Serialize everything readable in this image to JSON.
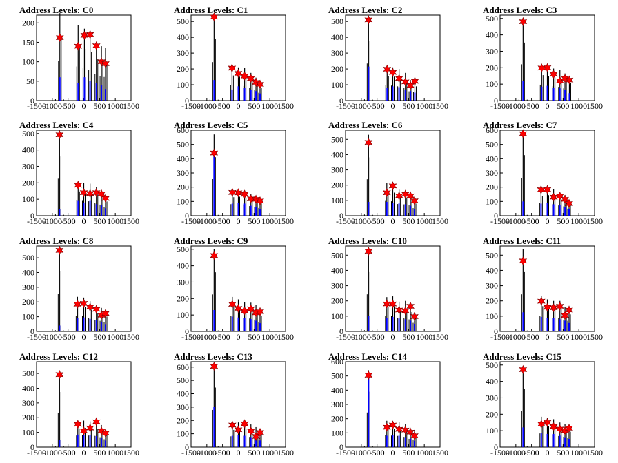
{
  "chart_data": [
    {
      "type": "bar",
      "title": "Address Levels: C0",
      "ylim": [
        0,
        220
      ],
      "yticks": [
        0,
        50,
        100,
        150,
        200
      ],
      "xlim": [
        -1500,
        1500
      ],
      "xticks": [
        -1500,
        -1000,
        -500,
        0,
        500,
        1000,
        1500
      ],
      "x": [
        -760,
        -180,
        20,
        200,
        400,
        560,
        690
      ],
      "peaks": [
        225,
        195,
        185,
        175,
        150,
        140,
        135
      ],
      "blue": [
        60,
        45,
        60,
        50,
        45,
        40,
        30
      ],
      "markers": [
        162,
        140,
        168,
        170,
        141,
        100,
        95
      ],
      "pre": [
        [
          -900,
          5
        ],
        [
          -640,
          3
        ]
      ]
    },
    {
      "type": "bar",
      "title": "Address Levels: C1",
      "ylim": [
        0,
        540
      ],
      "yticks": [
        0,
        100,
        200,
        300,
        400,
        500
      ],
      "xlim": [
        -1500,
        1500
      ],
      "xticks": [
        -1500,
        -1000,
        -500,
        0,
        500,
        1000,
        1500
      ],
      "x": [
        -770,
        -200,
        0,
        200,
        400,
        560,
        690
      ],
      "peaks": [
        540,
        220,
        210,
        205,
        175,
        145,
        110
      ],
      "blue": [
        130,
        70,
        90,
        80,
        70,
        60,
        45
      ],
      "markers": [
        528,
        205,
        172,
        155,
        140,
        115,
        103
      ],
      "pre": [
        [
          -900,
          8
        ],
        [
          -640,
          6
        ]
      ]
    },
    {
      "type": "bar",
      "title": "Address Levels: C2",
      "ylim": [
        0,
        540
      ],
      "yticks": [
        0,
        100,
        200,
        300,
        400,
        500
      ],
      "xlim": [
        -1500,
        1500
      ],
      "xticks": [
        -1500,
        -1000,
        -500,
        0,
        500,
        1000,
        1500
      ],
      "x": [
        -770,
        -180,
        0,
        200,
        400,
        560,
        700
      ],
      "peaks": [
        520,
        215,
        210,
        200,
        175,
        130,
        125
      ],
      "blue": [
        215,
        80,
        90,
        85,
        65,
        60,
        50
      ],
      "markers": [
        510,
        198,
        178,
        140,
        118,
        95,
        122
      ],
      "pre": [
        [
          -900,
          8
        ],
        [
          -640,
          6
        ]
      ]
    },
    {
      "type": "bar",
      "title": "Address Levels: C3",
      "ylim": [
        0,
        520
      ],
      "yticks": [
        0,
        100,
        200,
        300,
        400,
        500
      ],
      "xlim": [
        -1500,
        1500
      ],
      "xticks": [
        -1500,
        -1000,
        -500,
        0,
        500,
        1000,
        1500
      ],
      "x": [
        -770,
        -180,
        0,
        200,
        400,
        560,
        700
      ],
      "peaks": [
        490,
        215,
        205,
        195,
        185,
        165,
        150
      ],
      "blue": [
        120,
        85,
        90,
        80,
        75,
        65,
        45
      ],
      "markers": [
        480,
        198,
        200,
        160,
        120,
        135,
        125
      ],
      "pre": [
        [
          -900,
          8
        ],
        [
          -640,
          6
        ]
      ]
    },
    {
      "type": "bar",
      "title": "Address Levels: C4",
      "ylim": [
        0,
        520
      ],
      "yticks": [
        0,
        100,
        200,
        300,
        400,
        500
      ],
      "xlim": [
        -1500,
        1500
      ],
      "xticks": [
        -1500,
        -1000,
        -500,
        0,
        500,
        1000,
        1500
      ],
      "x": [
        -770,
        -180,
        0,
        200,
        400,
        560,
        690
      ],
      "peaks": [
        500,
        205,
        200,
        195,
        175,
        150,
        120
      ],
      "blue": [
        40,
        90,
        80,
        90,
        70,
        65,
        45
      ],
      "markers": [
        492,
        185,
        140,
        135,
        140,
        132,
        105
      ],
      "pre": [
        [
          -900,
          8
        ],
        [
          -640,
          6
        ]
      ]
    },
    {
      "type": "bar",
      "title": "Address Levels: C5",
      "ylim": [
        0,
        600
      ],
      "yticks": [
        0,
        100,
        200,
        300,
        400,
        500,
        600
      ],
      "xlim": [
        -1500,
        1500
      ],
      "xticks": [
        -1500,
        -1000,
        -500,
        0,
        500,
        1000,
        1500
      ],
      "x": [
        -770,
        -190,
        0,
        200,
        400,
        560,
        690
      ],
      "peaks": [
        570,
        180,
        185,
        170,
        150,
        140,
        120
      ],
      "blue": [
        440,
        85,
        90,
        85,
        70,
        60,
        45
      ],
      "markers": [
        440,
        163,
        160,
        150,
        118,
        115,
        103
      ],
      "pre": [
        [
          -900,
          8
        ],
        [
          -640,
          6
        ]
      ]
    },
    {
      "type": "bar",
      "title": "Address Levels: C6",
      "ylim": [
        0,
        560
      ],
      "yticks": [
        0,
        100,
        200,
        300,
        400,
        500
      ],
      "xlim": [
        -1500,
        1500
      ],
      "xticks": [
        -1500,
        -1000,
        -500,
        0,
        500,
        1000,
        1500
      ],
      "x": [
        -770,
        -190,
        0,
        200,
        400,
        560,
        690
      ],
      "peaks": [
        530,
        215,
        210,
        170,
        165,
        150,
        110
      ],
      "blue": [
        90,
        90,
        85,
        80,
        75,
        65,
        45
      ],
      "markers": [
        480,
        150,
        195,
        130,
        140,
        130,
        97
      ],
      "pre": [
        [
          -900,
          8
        ],
        [
          -640,
          6
        ]
      ]
    },
    {
      "type": "bar",
      "title": "Address Levels: C7",
      "ylim": [
        0,
        600
      ],
      "yticks": [
        0,
        100,
        200,
        300,
        400,
        500,
        600
      ],
      "xlim": [
        -1500,
        1500
      ],
      "xticks": [
        -1500,
        -1000,
        -500,
        0,
        500,
        1000,
        1500
      ],
      "x": [
        -770,
        -200,
        0,
        200,
        400,
        560,
        690
      ],
      "peaks": [
        590,
        195,
        200,
        185,
        160,
        145,
        110
      ],
      "blue": [
        100,
        85,
        90,
        80,
        75,
        60,
        45
      ],
      "markers": [
        575,
        182,
        183,
        130,
        137,
        115,
        85
      ],
      "pre": [
        [
          -900,
          8
        ],
        [
          -640,
          6
        ]
      ]
    },
    {
      "type": "bar",
      "title": "Address Levels: C8",
      "ylim": [
        0,
        580
      ],
      "yticks": [
        0,
        100,
        200,
        300,
        400,
        500
      ],
      "xlim": [
        -1500,
        1500
      ],
      "xticks": [
        -1500,
        -1000,
        -500,
        0,
        500,
        1000,
        1500
      ],
      "x": [
        -770,
        -200,
        0,
        200,
        400,
        560,
        690
      ],
      "peaks": [
        570,
        235,
        230,
        205,
        175,
        160,
        140
      ],
      "blue": [
        40,
        90,
        95,
        85,
        75,
        65,
        50
      ],
      "markers": [
        550,
        185,
        190,
        165,
        150,
        110,
        122
      ],
      "pre": [
        [
          -900,
          8
        ],
        [
          -640,
          6
        ]
      ]
    },
    {
      "type": "bar",
      "title": "Address Levels: C9",
      "ylim": [
        0,
        520
      ],
      "yticks": [
        0,
        100,
        200,
        300,
        400,
        500
      ],
      "xlim": [
        -1500,
        1500
      ],
      "xticks": [
        -1500,
        -1000,
        -500,
        0,
        500,
        1000,
        1500
      ],
      "x": [
        -770,
        -190,
        0,
        200,
        400,
        560,
        690
      ],
      "peaks": [
        500,
        210,
        195,
        180,
        175,
        160,
        130
      ],
      "blue": [
        130,
        90,
        85,
        80,
        75,
        65,
        50
      ],
      "markers": [
        462,
        165,
        140,
        125,
        138,
        113,
        120
      ],
      "pre": [
        [
          -900,
          8
        ],
        [
          -640,
          6
        ]
      ]
    },
    {
      "type": "bar",
      "title": "Address Levels: C10",
      "ylim": [
        0,
        560
      ],
      "yticks": [
        0,
        100,
        200,
        300,
        400,
        500
      ],
      "xlim": [
        -1500,
        1500
      ],
      "xticks": [
        -1500,
        -1000,
        -500,
        0,
        500,
        1000,
        1500
      ],
      "x": [
        -770,
        -190,
        0,
        200,
        400,
        560,
        690
      ],
      "peaks": [
        540,
        225,
        230,
        195,
        200,
        175,
        125
      ],
      "blue": [
        100,
        90,
        95,
        85,
        80,
        70,
        50
      ],
      "markers": [
        525,
        180,
        180,
        140,
        135,
        165,
        97
      ],
      "pre": [
        [
          -900,
          8
        ],
        [
          -640,
          6
        ]
      ]
    },
    {
      "type": "bar",
      "title": "Address Levels: C11",
      "ylim": [
        0,
        560
      ],
      "yticks": [
        0,
        100,
        200,
        300,
        400,
        500
      ],
      "xlim": [
        -1500,
        1500
      ],
      "xticks": [
        -1500,
        -1000,
        -500,
        0,
        500,
        1000,
        1500
      ],
      "x": [
        -770,
        -190,
        0,
        200,
        400,
        560,
        690
      ],
      "peaks": [
        540,
        230,
        210,
        200,
        200,
        160,
        155
      ],
      "blue": [
        125,
        95,
        90,
        90,
        80,
        70,
        55
      ],
      "markers": [
        462,
        198,
        158,
        155,
        165,
        105,
        140
      ],
      "pre": [
        [
          -900,
          8
        ],
        [
          -640,
          6
        ]
      ]
    },
    {
      "type": "bar",
      "title": "Address Levels: C12",
      "ylim": [
        0,
        580
      ],
      "yticks": [
        0,
        100,
        200,
        300,
        400,
        500
      ],
      "xlim": [
        -1500,
        1500
      ],
      "xticks": [
        -1500,
        -1000,
        -500,
        0,
        500,
        1000,
        1500
      ],
      "x": [
        -770,
        -190,
        0,
        200,
        400,
        560,
        690
      ],
      "peaks": [
        520,
        175,
        180,
        175,
        170,
        150,
        120
      ],
      "blue": [
        50,
        85,
        80,
        80,
        75,
        65,
        45
      ],
      "markers": [
        492,
        155,
        110,
        130,
        172,
        110,
        95
      ],
      "pre": [
        [
          -900,
          8
        ],
        [
          -640,
          6
        ]
      ]
    },
    {
      "type": "bar",
      "title": "Address Levels: C13",
      "ylim": [
        0,
        640
      ],
      "yticks": [
        0,
        100,
        200,
        300,
        400,
        500,
        600
      ],
      "xlim": [
        -1500,
        1500
      ],
      "xticks": [
        -1500,
        -1000,
        -500,
        0,
        500,
        1000,
        1500
      ],
      "x": [
        -770,
        -190,
        0,
        200,
        400,
        560,
        690
      ],
      "peaks": [
        620,
        180,
        185,
        190,
        170,
        150,
        135
      ],
      "blue": [
        300,
        85,
        90,
        85,
        75,
        65,
        50
      ],
      "markers": [
        605,
        165,
        130,
        175,
        120,
        80,
        110
      ],
      "pre": [
        [
          -900,
          8
        ],
        [
          -640,
          6
        ]
      ]
    },
    {
      "type": "bar",
      "title": "Address Levels: C14",
      "ylim": [
        0,
        600
      ],
      "yticks": [
        0,
        100,
        200,
        300,
        400,
        500,
        600
      ],
      "xlim": [
        -1500,
        1500
      ],
      "xticks": [
        -1500,
        -1000,
        -500,
        0,
        500,
        1000,
        1500
      ],
      "x": [
        -770,
        -190,
        0,
        200,
        400,
        560,
        690
      ],
      "peaks": [
        540,
        185,
        180,
        175,
        160,
        130,
        120
      ],
      "blue": [
        510,
        80,
        85,
        80,
        70,
        60,
        45
      ],
      "markers": [
        505,
        140,
        155,
        125,
        120,
        105,
        80
      ],
      "pre": [
        [
          -900,
          8
        ],
        [
          -640,
          6
        ]
      ]
    },
    {
      "type": "bar",
      "title": "Address Levels: C15",
      "ylim": [
        0,
        520
      ],
      "yticks": [
        0,
        100,
        200,
        300,
        400,
        500
      ],
      "xlim": [
        -1500,
        1500
      ],
      "xticks": [
        -1500,
        -1000,
        -500,
        0,
        500,
        1000,
        1500
      ],
      "x": [
        -770,
        -190,
        0,
        200,
        400,
        560,
        690
      ],
      "peaks": [
        490,
        185,
        180,
        170,
        150,
        140,
        130
      ],
      "blue": [
        120,
        85,
        80,
        80,
        70,
        60,
        50
      ],
      "markers": [
        472,
        140,
        150,
        125,
        110,
        100,
        115
      ],
      "pre": [
        [
          -900,
          8
        ],
        [
          -640,
          6
        ]
      ]
    }
  ],
  "colors": {
    "line": "#0000ff",
    "spike": "#000000",
    "marker_fill": "#ff0000",
    "marker_stroke": "#800000"
  }
}
